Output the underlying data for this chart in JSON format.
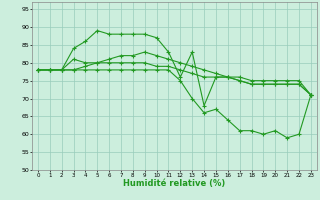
{
  "xlabel": "Humidité relative (%)",
  "background_color": "#cceedd",
  "grid_color": "#99ccbb",
  "line_color": "#229922",
  "ylim": [
    50,
    97
  ],
  "xlim": [
    -0.5,
    23.5
  ],
  "yticks": [
    50,
    55,
    60,
    65,
    70,
    75,
    80,
    85,
    90,
    95
  ],
  "xticks": [
    0,
    1,
    2,
    3,
    4,
    5,
    6,
    7,
    8,
    9,
    10,
    11,
    12,
    13,
    14,
    15,
    16,
    17,
    18,
    19,
    20,
    21,
    22,
    23
  ],
  "line1_x": [
    0,
    1,
    2,
    3,
    4,
    5,
    6,
    7,
    8,
    9,
    10,
    11,
    12,
    13,
    14,
    15,
    16,
    17,
    18,
    19,
    20,
    21,
    22,
    23
  ],
  "line1_y": [
    78,
    78,
    78,
    84,
    86,
    89,
    88,
    88,
    88,
    88,
    87,
    83,
    76,
    83,
    68,
    76,
    76,
    75,
    74,
    74,
    74,
    74,
    74,
    71
  ],
  "line2_x": [
    0,
    1,
    2,
    3,
    4,
    5,
    6,
    7,
    8,
    9,
    10,
    11,
    12,
    13,
    14,
    15,
    16,
    17,
    18,
    19,
    20,
    21,
    22,
    23
  ],
  "line2_y": [
    78,
    78,
    78,
    81,
    80,
    80,
    81,
    82,
    82,
    83,
    82,
    81,
    80,
    79,
    78,
    77,
    76,
    76,
    75,
    75,
    75,
    75,
    75,
    71
  ],
  "line3_x": [
    0,
    1,
    2,
    3,
    4,
    5,
    6,
    7,
    8,
    9,
    10,
    11,
    12,
    13,
    14,
    15,
    16,
    17,
    18,
    19,
    20,
    21,
    22,
    23
  ],
  "line3_y": [
    78,
    78,
    78,
    78,
    79,
    80,
    80,
    80,
    80,
    80,
    79,
    79,
    78,
    77,
    76,
    76,
    76,
    75,
    74,
    74,
    74,
    74,
    74,
    71
  ],
  "line4_x": [
    0,
    1,
    2,
    3,
    4,
    5,
    6,
    7,
    8,
    9,
    10,
    11,
    12,
    13,
    14,
    15,
    16,
    17,
    18,
    19,
    20,
    21,
    22,
    23
  ],
  "line4_y": [
    78,
    78,
    78,
    78,
    78,
    78,
    78,
    78,
    78,
    78,
    78,
    78,
    75,
    70,
    66,
    67,
    64,
    61,
    61,
    60,
    61,
    59,
    60,
    71
  ]
}
